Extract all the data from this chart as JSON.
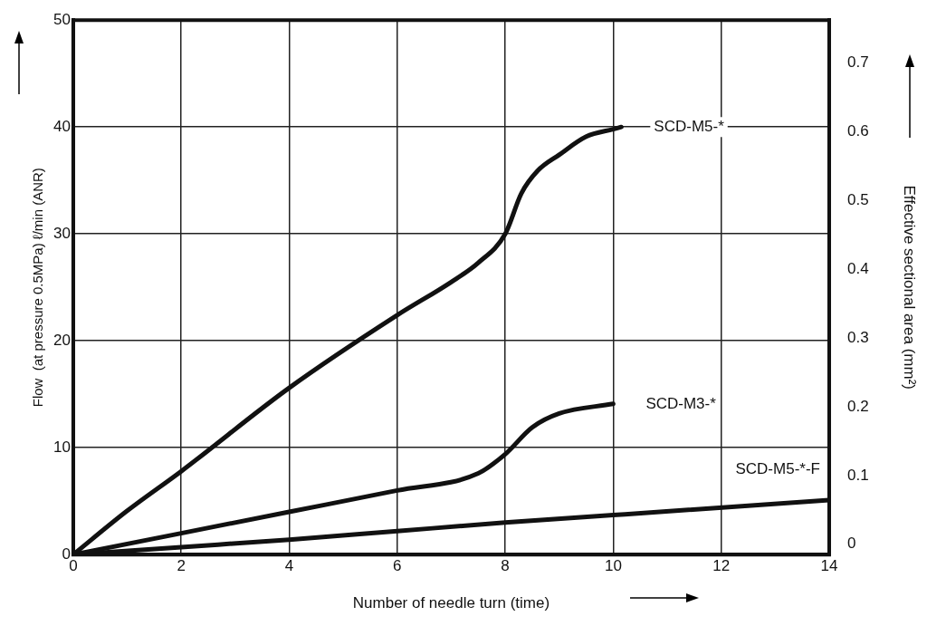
{
  "chart_data": {
    "type": "line",
    "xlabel": "Number of needle turn (time)",
    "ylabel": "Flow  (at pressure 0.5MPa) ℓ/min (ANR)",
    "y2label": "Effective sectional area (mm²)",
    "xlim": [
      0,
      14
    ],
    "xticks": [
      0,
      2,
      4,
      6,
      8,
      10,
      12,
      14
    ],
    "ylim": [
      0,
      50
    ],
    "yticks": [
      0,
      10,
      20,
      30,
      40,
      50
    ],
    "y2lim": [
      -0.015,
      0.762
    ],
    "y2ticks": [
      0,
      0.1,
      0.2,
      0.3,
      0.4,
      0.5,
      0.6,
      0.7
    ],
    "grid": true,
    "legend": false,
    "marker": "none",
    "line_style": "solid",
    "series": [
      {
        "name": "SCD-M5-*",
        "color": "#111111",
        "x": [
          0,
          1,
          2,
          4,
          6,
          7,
          7.5,
          8,
          8.3,
          8.6,
          9,
          9.5,
          10,
          10.15
        ],
        "values": [
          0,
          4.1,
          7.8,
          15.6,
          22.4,
          25.5,
          27.3,
          30,
          33.8,
          35.9,
          37.4,
          39.1,
          39.8,
          40
        ]
      },
      {
        "name": "SCD-M3-*",
        "color": "#111111",
        "x": [
          0,
          2,
          4,
          6,
          7.5,
          8,
          8.5,
          9,
          10
        ],
        "values": [
          0,
          2.0,
          4.0,
          6.0,
          7.6,
          9.4,
          11.9,
          13.2,
          14.1
        ]
      },
      {
        "name": "SCD-M5-*-F",
        "color": "#111111",
        "x": [
          0,
          2,
          4,
          6,
          8,
          10,
          14
        ],
        "values": [
          0,
          0.7,
          1.4,
          2.2,
          3.0,
          3.7,
          5.1
        ]
      }
    ]
  }
}
